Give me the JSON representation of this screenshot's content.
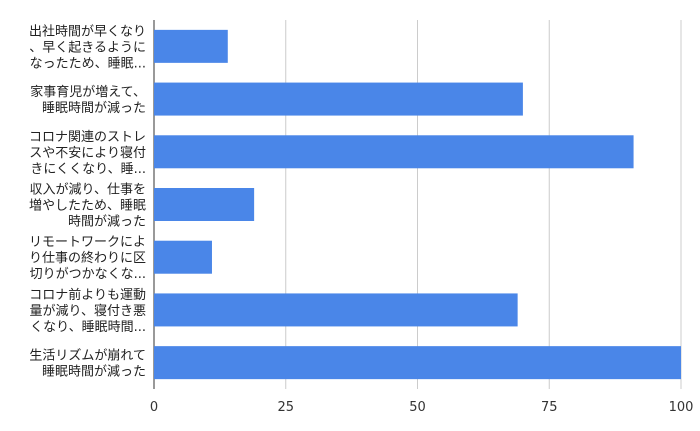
{
  "chart_data": {
    "type": "bar",
    "orientation": "horizontal",
    "categories": [
      [
        "出社時間が早くなり",
        "、早く起きるように",
        "なったため、睡眠..."
      ],
      [
        "家事育児が増えて、",
        "睡眠時間が減った"
      ],
      [
        "コロナ関連のストレ",
        "スや不安により寝付",
        "きにくくなり、睡..."
      ],
      [
        "収入が減り、仕事を",
        "増やしたため、睡眠",
        "時間が減った"
      ],
      [
        "リモートワークによ",
        "り仕事の終わりに区",
        "切りがつかなくな..."
      ],
      [
        "コロナ前よりも運動",
        "量が減り、寝付き悪",
        "くなり、睡眠時間..."
      ],
      [
        "生活リズムが崩れて",
        "睡眠時間が減った"
      ]
    ],
    "values": [
      14,
      70,
      91,
      19,
      11,
      69,
      100
    ],
    "x_ticks": [
      "0",
      "25",
      "50",
      "75",
      "100"
    ],
    "xlim": [
      0,
      100
    ],
    "grid": true,
    "legend": "none",
    "bar_color": "#4a86e8"
  }
}
